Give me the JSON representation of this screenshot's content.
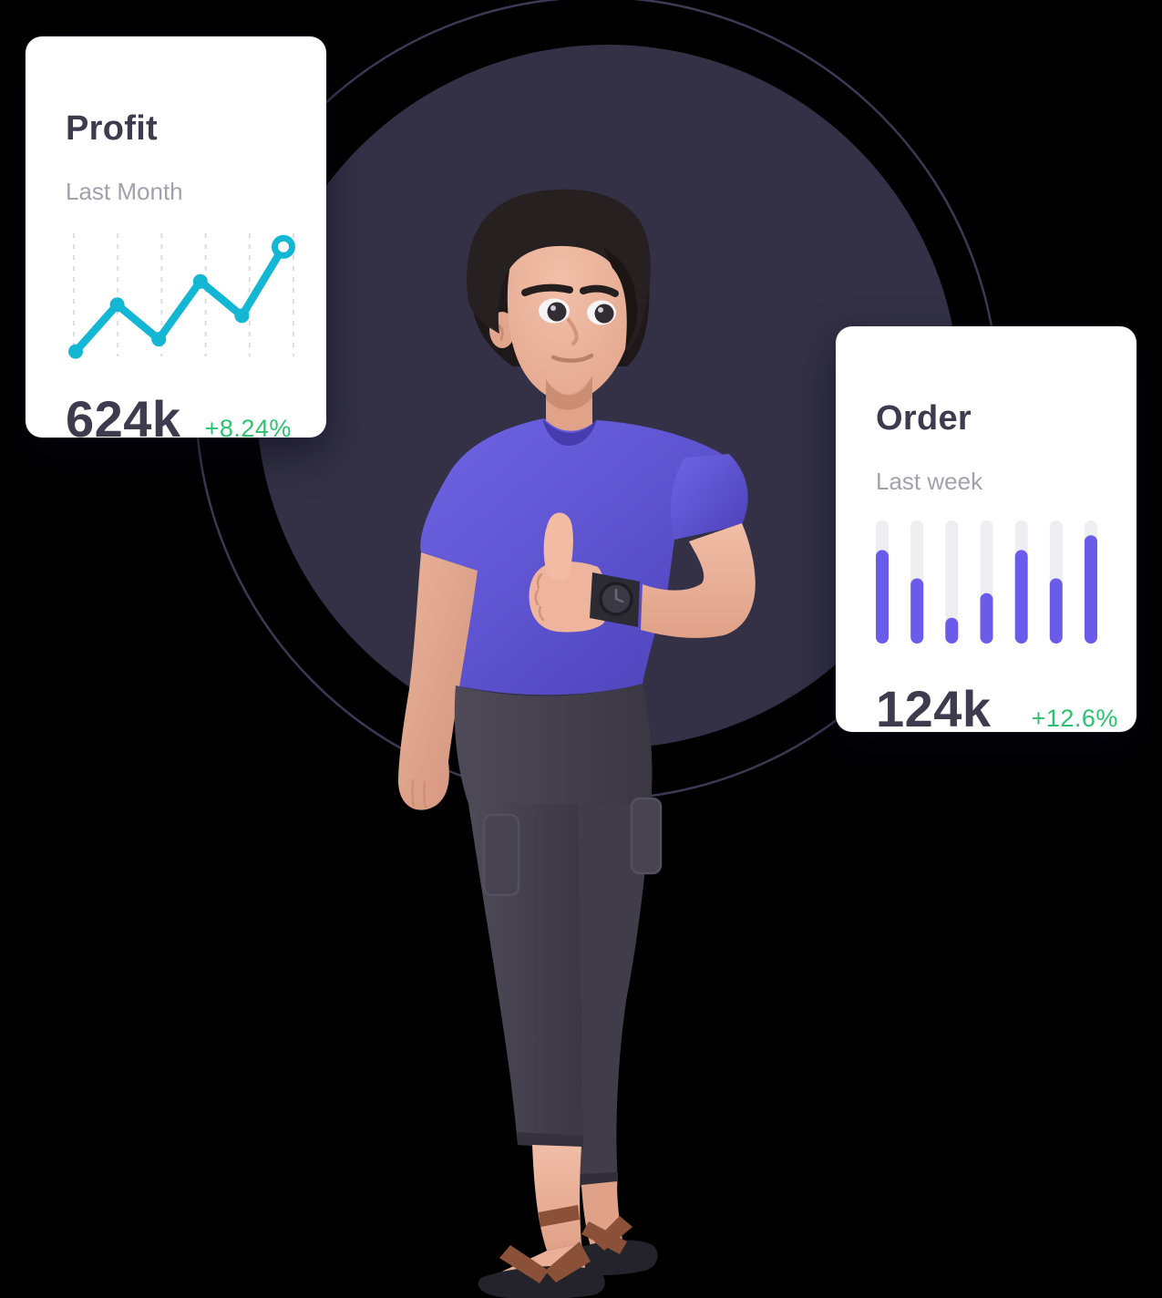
{
  "scene": {
    "description": "3D man with dark hair, purple t-shirt, dark trousers and brown sandals giving a thumbs up while wearing a black wrist watch, standing in front of a large dark circle with a thin outlined circle behind, flanked by two floating analytics stat cards",
    "background_color": "#000000"
  },
  "colors": {
    "card_bg": "#ffffff",
    "title_text": "#3e3b4e",
    "subtitle_text": "#a3a1ad",
    "positive_text": "#2bc46e",
    "line_accent": "#13b6d3",
    "bar_accent": "#6a5ce8",
    "bar_track": "#ededf2",
    "gridline": "#dcdce3",
    "circle_fill": "#343147",
    "circle_outline": "#3c3954"
  },
  "cards": [
    {
      "title": "Profit",
      "subtitle": "Last Month",
      "value": "624k",
      "delta": "+8.24%"
    },
    {
      "title": "Order",
      "subtitle": "Last week",
      "value": "124k",
      "delta": "+12.6%"
    }
  ],
  "chart_data": [
    {
      "type": "line",
      "title": "Profit",
      "subtitle": "Last Month",
      "kpi_value": "624k",
      "kpi_delta": "+8.24%",
      "x": [
        1,
        2,
        3,
        4,
        5,
        6
      ],
      "values": [
        4,
        42,
        14,
        61,
        33,
        89
      ],
      "ylim": [
        0,
        100
      ],
      "grid": "vertical-dashed",
      "legend": "none",
      "line_color": "#13b6d3",
      "grid_color": "#dcdce3",
      "point_style": "filled-dot",
      "last_point_style": "open-ring"
    },
    {
      "type": "bar",
      "title": "Order",
      "subtitle": "Last week",
      "kpi_value": "124k",
      "kpi_delta": "+12.6%",
      "categories": [
        1,
        2,
        3,
        4,
        5,
        6,
        7
      ],
      "values": [
        76,
        53,
        21,
        41,
        76,
        53,
        88
      ],
      "ylim": [
        0,
        100
      ],
      "grid": "off",
      "legend": "none",
      "bar_color": "#6a5ce8",
      "track_color": "#ededf2",
      "bar_style": "rounded-pill-on-full-height-track"
    }
  ],
  "illustration": {
    "character": "3d-man-thumbs-up",
    "shirt_color": "#5f54d0",
    "pants_color": "#44404d",
    "skin_color": "#e9af97",
    "hair_color": "#262020",
    "sandal_strap_color": "#8a5138",
    "sandal_sole_color": "#24222b",
    "watch_color": "#2c2b33"
  }
}
